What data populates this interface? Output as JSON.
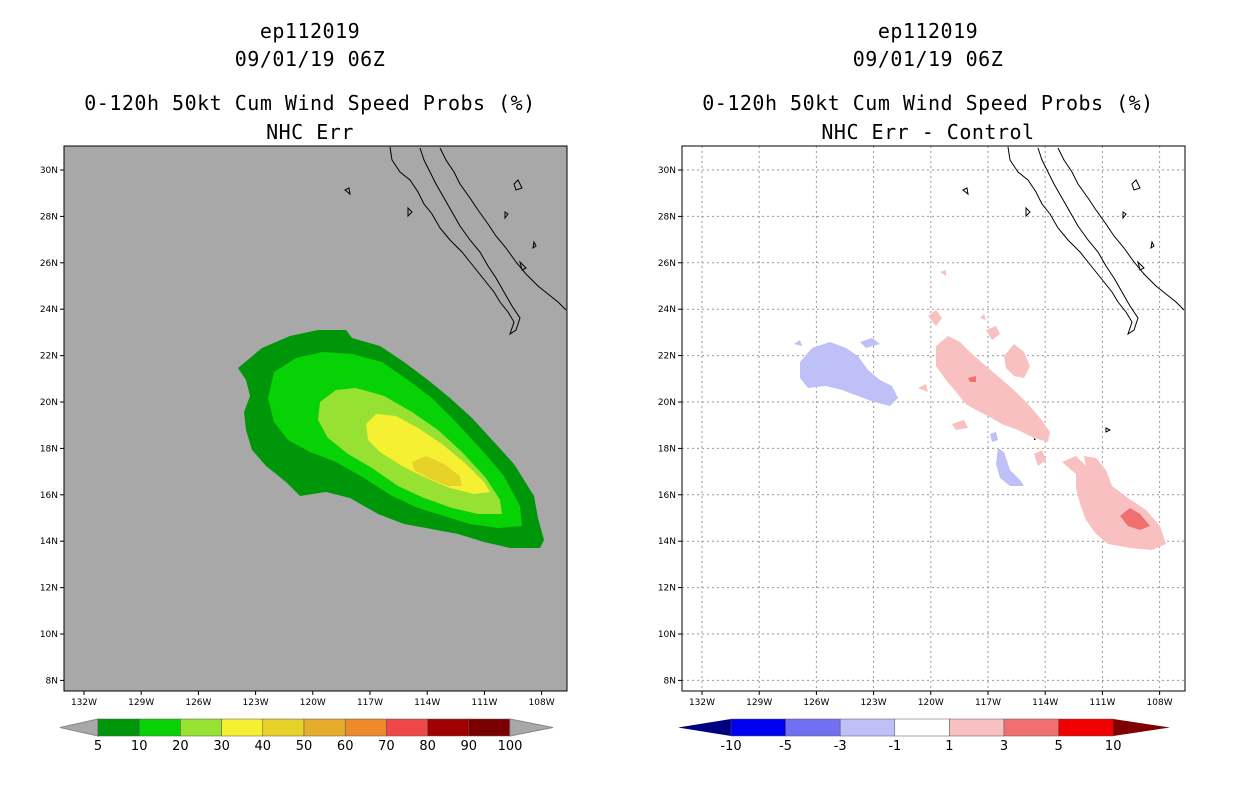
{
  "left_panel": {
    "storm_id": "ep112019",
    "datetime": "09/01/19 06Z",
    "product": "0-120h 50kt Cum Wind Speed Probs (%)",
    "subtitle": "NHC Err",
    "background_color": "#a8a8a8",
    "lat_labels": [
      "30N",
      "28N",
      "26N",
      "24N",
      "22N",
      "20N",
      "18N",
      "16N",
      "14N",
      "12N",
      "10N",
      "8N"
    ],
    "lon_labels": [
      "132W",
      "129W",
      "126W",
      "123W",
      "120W",
      "117W",
      "114W",
      "111W",
      "108W"
    ],
    "colorbar": {
      "labels": [
        "5",
        "10",
        "20",
        "30",
        "40",
        "50",
        "60",
        "70",
        "80",
        "90",
        "100"
      ],
      "colors": [
        "#00960a",
        "#06d206",
        "#96e132",
        "#f5f032",
        "#e6d228",
        "#e6ad2d",
        "#ed8a2a",
        "#f04848",
        "#a00000",
        "#780000",
        "#7a00dc"
      ]
    }
  },
  "right_panel": {
    "storm_id": "ep112019",
    "datetime": "09/01/19 06Z",
    "product": "0-120h 50kt Cum Wind Speed Probs (%)",
    "subtitle": "NHC Err - Control",
    "background_color": "#ffffff",
    "lat_labels": [
      "30N",
      "28N",
      "26N",
      "24N",
      "22N",
      "20N",
      "18N",
      "16N",
      "14N",
      "12N",
      "10N",
      "8N"
    ],
    "lon_labels": [
      "132W",
      "129W",
      "126W",
      "123W",
      "120W",
      "117W",
      "114W",
      "111W",
      "108W"
    ],
    "colorbar": {
      "labels": [
        "-10",
        "-5",
        "-3",
        "-1",
        "1",
        "3",
        "5",
        "10"
      ],
      "colors": [
        "#000080",
        "#0000f0",
        "#7070f0",
        "#c0c0f8",
        "#ffffff",
        "#f8c0c0",
        "#f07070",
        "#f00000",
        "#800000"
      ]
    }
  }
}
